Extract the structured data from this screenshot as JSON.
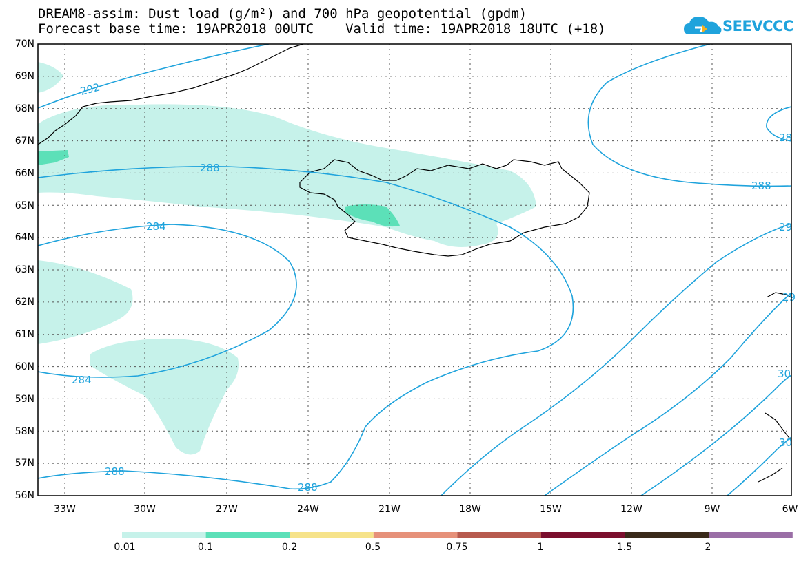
{
  "header": {
    "title_line1": "DREAM8-assim: Dust load (g/m²) and 700 hPa geopotential (gpdm)",
    "title_line2": "Forecast base time: 19APR2018 00UTC    Valid time: 19APR2018 18UTC (+18)"
  },
  "logo": {
    "text": "SEEVCCC",
    "icon": "cloud-logo-icon",
    "color": "#1fa3dc"
  },
  "map": {
    "lat_labels": [
      "70N",
      "69N",
      "68N",
      "67N",
      "66N",
      "65N",
      "64N",
      "63N",
      "62N",
      "61N",
      "60N",
      "59N",
      "58N",
      "57N",
      "56N"
    ],
    "lon_labels": [
      "33W",
      "30W",
      "27W",
      "24W",
      "21W",
      "18W",
      "15W",
      "12W",
      "9W",
      "6W"
    ],
    "contour_labels": [
      "292",
      "288",
      "284",
      "284",
      "288",
      "288",
      "288",
      "28",
      "29",
      "29",
      "30",
      "30"
    ],
    "contour_color": "#1fa3dc",
    "dust_low_color": "#c6f2ea",
    "dust_mid_color": "#5ce0b8"
  },
  "colorbar": {
    "labels": [
      "0.01",
      "0.1",
      "0.2",
      "0.5",
      "0.75",
      "1",
      "1.5",
      "2"
    ],
    "colors": [
      "#c6f2ea",
      "#5ce0b8",
      "#f6e38a",
      "#e6917a",
      "#b75a4e",
      "#7b0f2e",
      "#3a2a1a",
      "#9a6ea6"
    ]
  }
}
